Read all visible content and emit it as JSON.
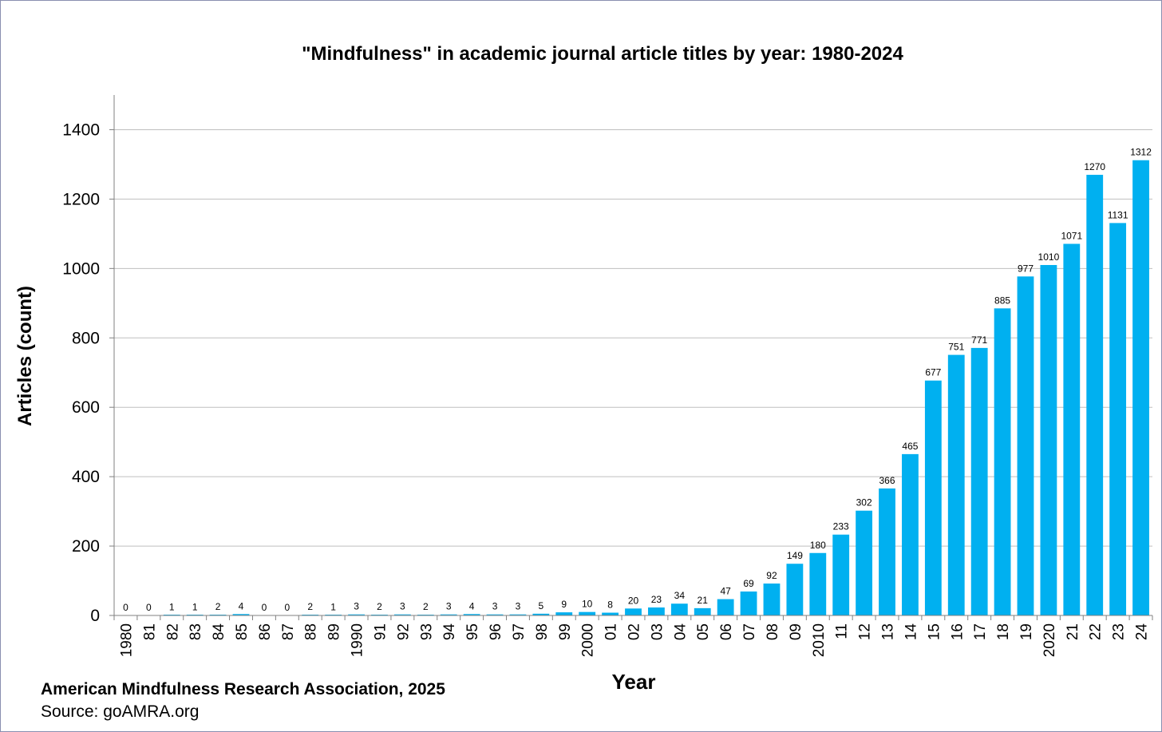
{
  "chart_data": {
    "type": "bar",
    "title": "\"Mindfulness\" in academic journal article titles by year: 1980-2024",
    "xlabel": "Year",
    "ylabel": "Articles (count)",
    "ylim": [
      0,
      1500
    ],
    "yticks": [
      0,
      200,
      400,
      600,
      800,
      1000,
      1200,
      1400
    ],
    "grid": true,
    "bar_color": "#00b0f0",
    "grid_color": "#bfbfbf",
    "categories": [
      "1980",
      "81",
      "82",
      "83",
      "84",
      "85",
      "86",
      "87",
      "88",
      "89",
      "1990",
      "91",
      "92",
      "93",
      "94",
      "95",
      "96",
      "97",
      "98",
      "99",
      "2000",
      "01",
      "02",
      "03",
      "04",
      "05",
      "06",
      "07",
      "08",
      "09",
      "2010",
      "11",
      "12",
      "13",
      "14",
      "15",
      "16",
      "17",
      "18",
      "19",
      "2020",
      "21",
      "22",
      "23",
      "24"
    ],
    "values": [
      0,
      0,
      1,
      1,
      2,
      4,
      0,
      0,
      2,
      1,
      3,
      2,
      3,
      2,
      3,
      4,
      3,
      3,
      5,
      9,
      10,
      8,
      20,
      23,
      34,
      21,
      47,
      69,
      92,
      149,
      180,
      233,
      302,
      366,
      465,
      677,
      751,
      771,
      885,
      977,
      1010,
      1071,
      1270,
      1131,
      1312
    ]
  },
  "footer": {
    "organization": "American Mindfulness Research Association, 2025",
    "source": "Source: goAMRA.org"
  }
}
